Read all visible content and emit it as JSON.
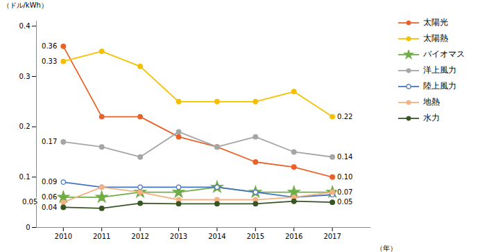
{
  "chart_data": {
    "type": "line",
    "x": [
      2010,
      2011,
      2012,
      2013,
      2014,
      2015,
      2016,
      2017
    ],
    "series": [
      {
        "name": "太陽光",
        "color": "#e8622a",
        "marker": "circle",
        "values": [
          0.36,
          0.22,
          0.22,
          0.18,
          0.16,
          0.13,
          0.12,
          0.1
        ]
      },
      {
        "name": "太陽熱",
        "color": "#f5c000",
        "marker": "circle",
        "values": [
          0.33,
          0.35,
          0.32,
          0.25,
          0.25,
          0.25,
          0.27,
          0.22
        ]
      },
      {
        "name": "バイオマス",
        "color": "#70ad47",
        "marker": "star",
        "values": [
          0.06,
          0.06,
          0.07,
          0.07,
          0.08,
          0.07,
          0.07,
          0.07
        ]
      },
      {
        "name": "洋上風力",
        "color": "#a5a5a5",
        "marker": "circle",
        "values": [
          0.17,
          0.16,
          0.14,
          0.19,
          0.16,
          0.18,
          0.15,
          0.14
        ]
      },
      {
        "name": "陸上風力",
        "color": "#4472c4",
        "marker": "open_circle",
        "values": [
          0.09,
          0.08,
          0.08,
          0.08,
          0.08,
          0.07,
          0.06,
          0.065
        ]
      },
      {
        "name": "地熱",
        "color": "#f4b183",
        "marker": "circle",
        "values": [
          0.05,
          0.08,
          0.07,
          0.055,
          0.055,
          0.055,
          0.06,
          0.07
        ]
      },
      {
        "name": "水力",
        "color": "#375623",
        "marker": "circle",
        "values": [
          0.04,
          0.038,
          0.048,
          0.047,
          0.047,
          0.047,
          0.052,
          0.05
        ]
      }
    ],
    "annotations": [
      {
        "x": 2010,
        "y": 0.36,
        "text": "0.36"
      },
      {
        "x": 2010,
        "y": 0.33,
        "text": "0.33"
      },
      {
        "x": 2010,
        "y": 0.17,
        "text": "0.17"
      },
      {
        "x": 2010,
        "y": 0.09,
        "text": "0.09"
      },
      {
        "x": 2010,
        "y": 0.06,
        "text": "0.06"
      },
      {
        "x": 2010,
        "y": 0.05,
        "text": "0.05"
      },
      {
        "x": 2010,
        "y": 0.04,
        "text": "0.04"
      },
      {
        "x": 2017,
        "y": 0.22,
        "text": "0.22"
      },
      {
        "x": 2017,
        "y": 0.14,
        "text": "0.14"
      },
      {
        "x": 2017,
        "y": 0.1,
        "text": "0.10"
      },
      {
        "x": 2017,
        "y": 0.07,
        "text": "0.07"
      },
      {
        "x": 2017,
        "y": 0.05,
        "text": "0.05"
      }
    ],
    "xlim": [
      2009.3,
      2018.0
    ],
    "xticks": [
      2010,
      2011,
      2012,
      2013,
      2014,
      2015,
      2016,
      2017
    ],
    "ylim": [
      0,
      0.41
    ],
    "yticks": [
      0,
      0.1,
      0.2,
      0.3,
      0.4
    ],
    "ylabel": "（ドル/kWh）",
    "xlabel": "（年）",
    "grid": false,
    "legend": "right"
  }
}
